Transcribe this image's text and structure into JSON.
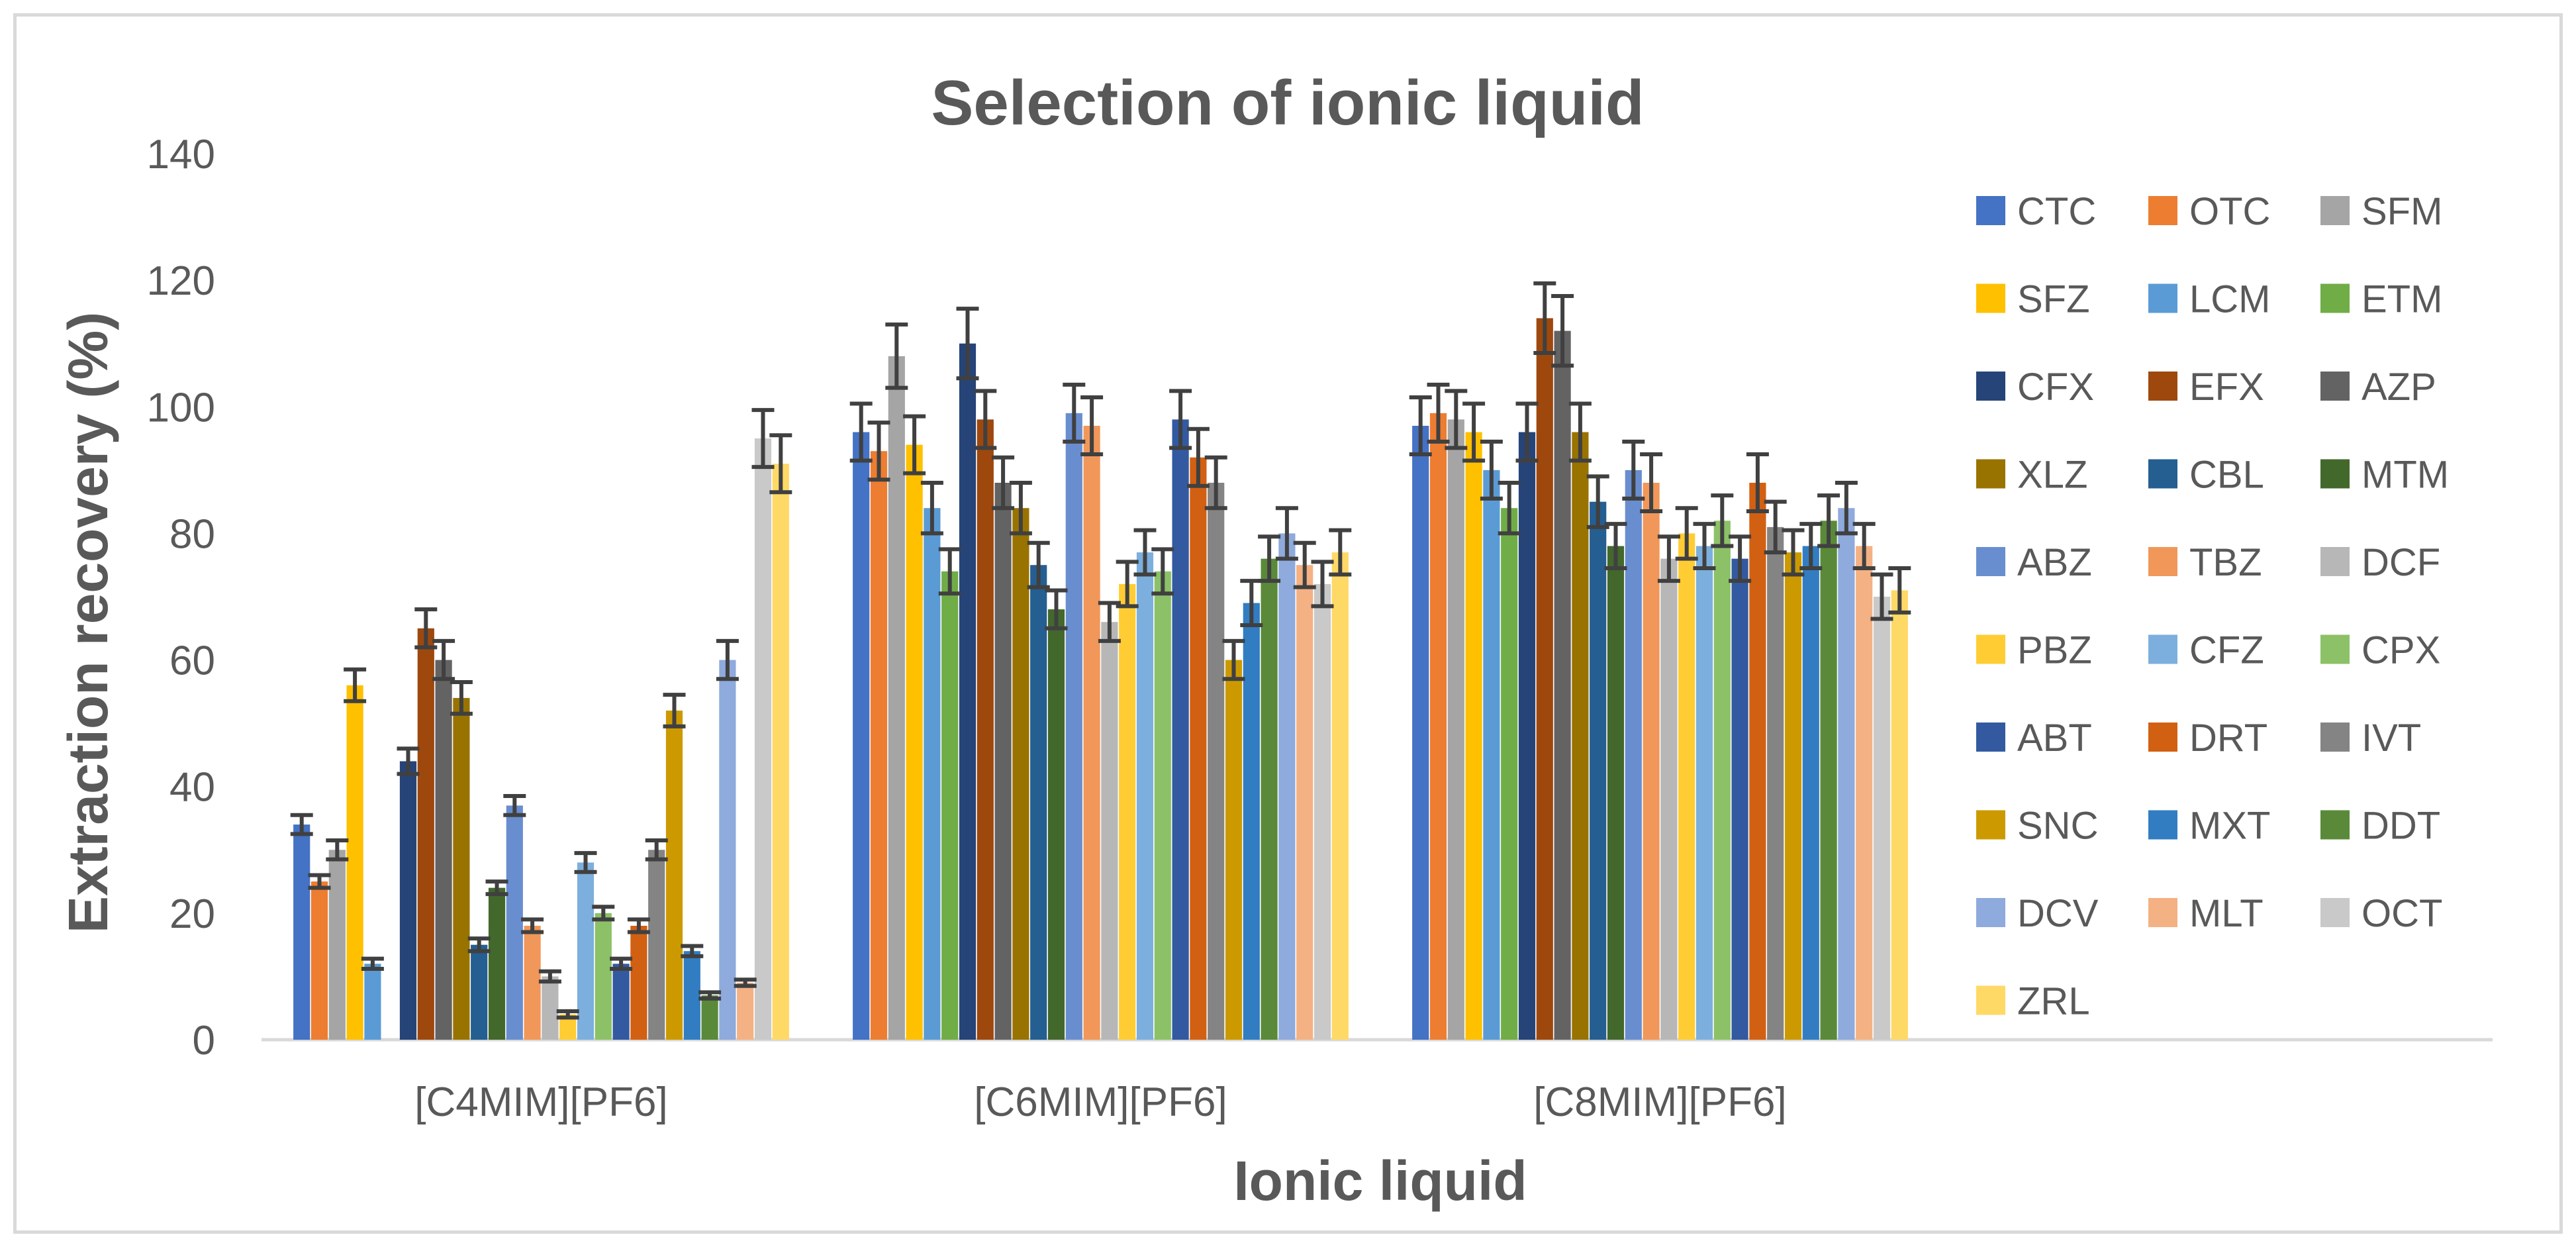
{
  "chart_data": {
    "type": "bar",
    "title": "Selection of ionic liquid",
    "xlabel": "Ionic liquid",
    "ylabel": "Extraction recovery (%)",
    "ylim": [
      0,
      140
    ],
    "yticks": [
      0,
      20,
      40,
      60,
      80,
      100,
      120,
      140
    ],
    "grid": false,
    "legend_position": "right",
    "error_bars": true,
    "categories": [
      "[C4MIM][PF6]",
      "[C6MIM][PF6]",
      "[C8MIM][PF6]"
    ],
    "series": [
      {
        "name": "CTC",
        "color": "#4472c4",
        "values": [
          34,
          96,
          97
        ],
        "errors": [
          1.5,
          4.5,
          4.5
        ]
      },
      {
        "name": "OTC",
        "color": "#ed7d31",
        "values": [
          25,
          93,
          99
        ],
        "errors": [
          1.0,
          4.5,
          4.5
        ]
      },
      {
        "name": "SFM",
        "color": "#a5a5a5",
        "values": [
          30,
          108,
          98
        ],
        "errors": [
          1.5,
          5.0,
          4.5
        ]
      },
      {
        "name": "SFZ",
        "color": "#ffc000",
        "values": [
          56,
          94,
          96
        ],
        "errors": [
          2.5,
          4.5,
          4.5
        ]
      },
      {
        "name": "LCM",
        "color": "#5b9bd5",
        "values": [
          12,
          84,
          90
        ],
        "errors": [
          0.8,
          4.0,
          4.5
        ]
      },
      {
        "name": "ETM",
        "color": "#70ad47",
        "values": [
          0,
          74,
          84
        ],
        "errors": [
          0,
          3.5,
          4.0
        ]
      },
      {
        "name": "CFX",
        "color": "#264478",
        "values": [
          44,
          110,
          96
        ],
        "errors": [
          2.0,
          5.5,
          4.5
        ]
      },
      {
        "name": "EFX",
        "color": "#9e480e",
        "values": [
          65,
          98,
          114
        ],
        "errors": [
          3.0,
          4.5,
          5.5
        ]
      },
      {
        "name": "AZP",
        "color": "#636363",
        "values": [
          60,
          88,
          112
        ],
        "errors": [
          3.0,
          4.0,
          5.5
        ]
      },
      {
        "name": "XLZ",
        "color": "#997300",
        "values": [
          54,
          84,
          96
        ],
        "errors": [
          2.5,
          4.0,
          4.5
        ]
      },
      {
        "name": "CBL",
        "color": "#255e91",
        "values": [
          15,
          75,
          85
        ],
        "errors": [
          1.0,
          3.5,
          4.0
        ]
      },
      {
        "name": "MTM",
        "color": "#43682b",
        "values": [
          24,
          68,
          78
        ],
        "errors": [
          1.0,
          3.0,
          3.5
        ]
      },
      {
        "name": "ABZ",
        "color": "#698ed0",
        "values": [
          37,
          99,
          90
        ],
        "errors": [
          1.5,
          4.5,
          4.5
        ]
      },
      {
        "name": "TBZ",
        "color": "#f1975a",
        "values": [
          18,
          97,
          88
        ],
        "errors": [
          1.0,
          4.5,
          4.5
        ]
      },
      {
        "name": "DCF",
        "color": "#b7b7b7",
        "values": [
          10,
          66,
          76
        ],
        "errors": [
          0.8,
          3.0,
          3.5
        ]
      },
      {
        "name": "PBZ",
        "color": "#ffcd33",
        "values": [
          4,
          72,
          80
        ],
        "errors": [
          0.5,
          3.5,
          4.0
        ]
      },
      {
        "name": "CFZ",
        "color": "#7cafdd",
        "values": [
          28,
          77,
          78
        ],
        "errors": [
          1.5,
          3.5,
          3.5
        ]
      },
      {
        "name": "CPX",
        "color": "#8cc168",
        "values": [
          20,
          74,
          82
        ],
        "errors": [
          1.0,
          3.5,
          4.0
        ]
      },
      {
        "name": "ABT",
        "color": "#335aa1",
        "values": [
          12,
          98,
          76
        ],
        "errors": [
          0.8,
          4.5,
          3.5
        ]
      },
      {
        "name": "DRT",
        "color": "#d26012",
        "values": [
          18,
          92,
          88
        ],
        "errors": [
          1.0,
          4.5,
          4.5
        ]
      },
      {
        "name": "IVT",
        "color": "#848484",
        "values": [
          30,
          88,
          81
        ],
        "errors": [
          1.5,
          4.0,
          4.0
        ]
      },
      {
        "name": "SNC",
        "color": "#cc9a00",
        "values": [
          52,
          60,
          77
        ],
        "errors": [
          2.5,
          3.0,
          3.5
        ]
      },
      {
        "name": "MXT",
        "color": "#327dc2",
        "values": [
          14,
          69,
          78
        ],
        "errors": [
          0.8,
          3.5,
          3.5
        ]
      },
      {
        "name": "DDT",
        "color": "#5a8a39",
        "values": [
          7,
          76,
          82
        ],
        "errors": [
          0.5,
          3.5,
          4.0
        ]
      },
      {
        "name": "DCV",
        "color": "#8faadc",
        "values": [
          60,
          80,
          84
        ],
        "errors": [
          3.0,
          4.0,
          4.0
        ]
      },
      {
        "name": "MLT",
        "color": "#f4b183",
        "values": [
          9,
          75,
          78
        ],
        "errors": [
          0.5,
          3.5,
          3.5
        ]
      },
      {
        "name": "OCT",
        "color": "#c9c9c9",
        "values": [
          95,
          72,
          70
        ],
        "errors": [
          4.5,
          3.5,
          3.5
        ]
      },
      {
        "name": "ZRL",
        "color": "#ffd966",
        "values": [
          91,
          77,
          71
        ],
        "errors": [
          4.5,
          3.5,
          3.5
        ]
      }
    ]
  }
}
